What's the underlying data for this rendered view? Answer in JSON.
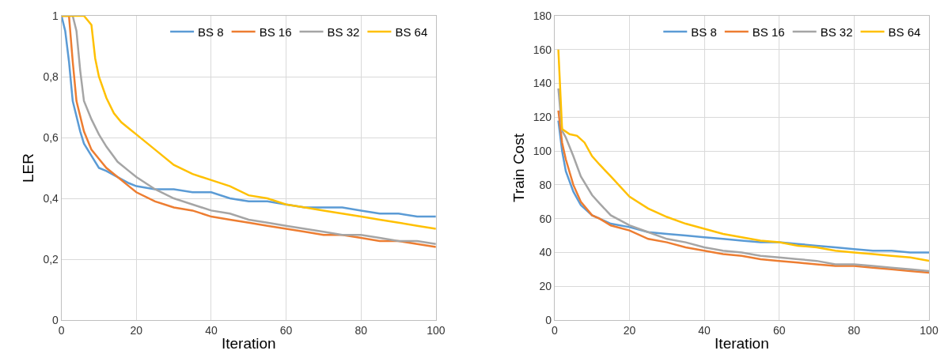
{
  "chart_data": [
    {
      "type": "line",
      "xlabel": "Iteration",
      "ylabel": "LER",
      "xlim": [
        0,
        100
      ],
      "xticks": [
        0,
        20,
        40,
        60,
        80,
        100
      ],
      "ylim": [
        0,
        1
      ],
      "yticks": [
        0,
        {
          "value": 0.2,
          "label": "0,2"
        },
        {
          "value": 0.4,
          "label": "0,4"
        },
        {
          "value": 0.6,
          "label": "0,6"
        },
        {
          "value": 0.8,
          "label": "0,8"
        },
        1
      ],
      "grid": true,
      "legend": "top right",
      "marker": "none",
      "line_style": "solid",
      "series": [
        {
          "name": "BS 8",
          "color": "#5b9bd5",
          "x": [
            0,
            1,
            2,
            3,
            5,
            6,
            8,
            10,
            12,
            15,
            18,
            20,
            25,
            30,
            35,
            40,
            45,
            50,
            55,
            60,
            65,
            70,
            75,
            80,
            85,
            90,
            95,
            100
          ],
          "values": [
            1,
            0.95,
            0.85,
            0.72,
            0.62,
            0.58,
            0.54,
            0.5,
            0.49,
            0.47,
            0.45,
            0.44,
            0.43,
            0.43,
            0.42,
            0.42,
            0.4,
            0.39,
            0.39,
            0.38,
            0.37,
            0.37,
            0.37,
            0.36,
            0.35,
            0.35,
            0.34,
            0.34
          ]
        },
        {
          "name": "BS 16",
          "color": "#ed7d31",
          "x": [
            0,
            2,
            3,
            4,
            6,
            8,
            10,
            12,
            15,
            18,
            20,
            25,
            30,
            35,
            40,
            45,
            50,
            55,
            60,
            65,
            70,
            75,
            80,
            85,
            90,
            95,
            100
          ],
          "values": [
            1,
            1,
            0.85,
            0.72,
            0.62,
            0.56,
            0.53,
            0.5,
            0.47,
            0.44,
            0.42,
            0.39,
            0.37,
            0.36,
            0.34,
            0.33,
            0.32,
            0.31,
            0.3,
            0.29,
            0.28,
            0.28,
            0.27,
            0.26,
            0.26,
            0.25,
            0.24
          ]
        },
        {
          "name": "BS 32",
          "color": "#a5a5a5",
          "x": [
            0,
            3,
            4,
            5,
            6,
            8,
            10,
            12,
            15,
            18,
            20,
            25,
            30,
            35,
            40,
            45,
            50,
            55,
            60,
            65,
            70,
            75,
            80,
            85,
            90,
            95,
            100
          ],
          "values": [
            1,
            1,
            0.95,
            0.82,
            0.72,
            0.66,
            0.61,
            0.57,
            0.52,
            0.49,
            0.47,
            0.43,
            0.4,
            0.38,
            0.36,
            0.35,
            0.33,
            0.32,
            0.31,
            0.3,
            0.29,
            0.28,
            0.28,
            0.27,
            0.26,
            0.26,
            0.25
          ]
        },
        {
          "name": "BS 64",
          "color": "#ffc000",
          "x": [
            0,
            6,
            8,
            9,
            10,
            12,
            14,
            16,
            18,
            20,
            25,
            30,
            35,
            40,
            45,
            50,
            55,
            60,
            65,
            70,
            75,
            80,
            85,
            90,
            95,
            100
          ],
          "values": [
            1,
            1,
            0.97,
            0.86,
            0.8,
            0.73,
            0.68,
            0.65,
            0.63,
            0.61,
            0.56,
            0.51,
            0.48,
            0.46,
            0.44,
            0.41,
            0.4,
            0.38,
            0.37,
            0.36,
            0.35,
            0.34,
            0.33,
            0.32,
            0.31,
            0.3
          ]
        }
      ]
    },
    {
      "type": "line",
      "xlabel": "Iteration",
      "ylabel": "Train Cost",
      "xlim": [
        0,
        100
      ],
      "xticks": [
        0,
        20,
        40,
        60,
        80,
        100
      ],
      "ylim": [
        0,
        180
      ],
      "yticks": [
        0,
        20,
        40,
        60,
        80,
        100,
        120,
        140,
        160,
        180
      ],
      "grid": true,
      "legend": "top right",
      "marker": "none",
      "line_style": "solid",
      "series": [
        {
          "name": "BS 8",
          "color": "#5b9bd5",
          "x": [
            1,
            2,
            3,
            5,
            7,
            10,
            12,
            15,
            20,
            25,
            30,
            35,
            40,
            45,
            50,
            55,
            60,
            65,
            70,
            75,
            80,
            85,
            90,
            95,
            100
          ],
          "values": [
            118,
            100,
            88,
            76,
            68,
            62,
            60,
            57,
            55,
            52,
            51,
            50,
            49,
            48,
            47,
            46,
            46,
            45,
            44,
            43,
            42,
            41,
            41,
            40,
            40
          ]
        },
        {
          "name": "BS 16",
          "color": "#ed7d31",
          "x": [
            1,
            2,
            3,
            5,
            7,
            10,
            12,
            15,
            20,
            25,
            30,
            35,
            40,
            45,
            50,
            55,
            60,
            65,
            70,
            75,
            80,
            85,
            90,
            95,
            100
          ],
          "values": [
            124,
            105,
            95,
            80,
            70,
            62,
            60,
            56,
            53,
            48,
            46,
            43,
            41,
            39,
            38,
            36,
            35,
            34,
            33,
            32,
            32,
            31,
            30,
            29,
            28
          ]
        },
        {
          "name": "BS 32",
          "color": "#a5a5a5",
          "x": [
            1,
            2,
            3,
            5,
            7,
            10,
            12,
            15,
            20,
            25,
            30,
            35,
            40,
            45,
            50,
            55,
            60,
            65,
            70,
            75,
            80,
            85,
            90,
            95,
            100
          ],
          "values": [
            137,
            112,
            108,
            97,
            85,
            74,
            69,
            62,
            56,
            52,
            48,
            46,
            43,
            41,
            40,
            38,
            37,
            36,
            35,
            33,
            33,
            32,
            31,
            30,
            29
          ]
        },
        {
          "name": "BS 64",
          "color": "#ffc000",
          "x": [
            1,
            2,
            4,
            6,
            8,
            10,
            12,
            15,
            20,
            25,
            30,
            35,
            40,
            45,
            50,
            55,
            60,
            65,
            70,
            75,
            80,
            85,
            90,
            95,
            100
          ],
          "values": [
            160,
            113,
            110,
            109,
            105,
            97,
            92,
            85,
            73,
            66,
            61,
            57,
            54,
            51,
            49,
            47,
            46,
            44,
            43,
            41,
            40,
            39,
            38,
            37,
            35
          ]
        }
      ]
    }
  ]
}
